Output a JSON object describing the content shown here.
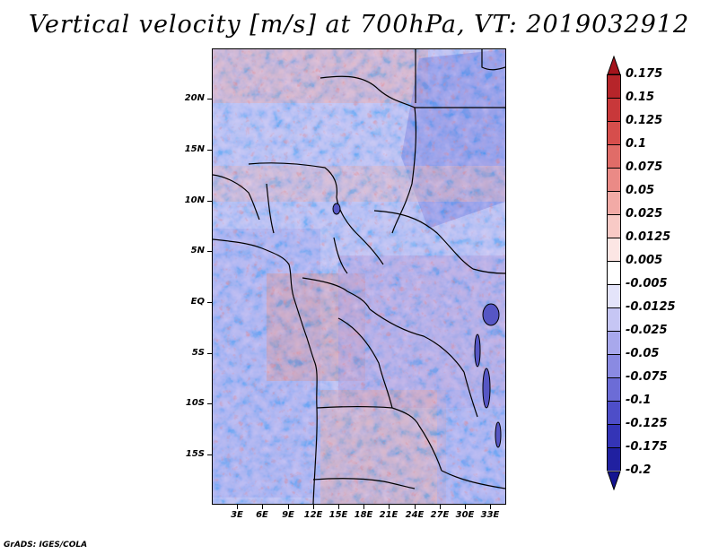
{
  "title": "Vertical velocity [m/s] at 700hPa, VT: 2019032912",
  "footer": "GrADS: IGES/COLA",
  "map": {
    "lat_labels": [
      "20N",
      "15N",
      "10N",
      "5N",
      "EQ",
      "5S",
      "10S",
      "15S"
    ],
    "lon_labels": [
      "3E",
      "6E",
      "9E",
      "12E",
      "15E",
      "18E",
      "21E",
      "24E",
      "27E",
      "30E",
      "33E"
    ]
  },
  "colorbar": {
    "labels": [
      "0.175",
      "0.15",
      "0.125",
      "0.1",
      "0.075",
      "0.05",
      "0.025",
      "0.0125",
      "0.005",
      "-0.005",
      "-0.0125",
      "-0.025",
      "-0.05",
      "-0.075",
      "-0.1",
      "-0.125",
      "-0.175",
      "-0.2"
    ],
    "colors": [
      "#a4141c",
      "#b6252a",
      "#c8383a",
      "#d64e4c",
      "#e06c68",
      "#ea8a86",
      "#f2aaa6",
      "#f8cac6",
      "#fce6e4",
      "#ffffff",
      "#e4e4fa",
      "#c6c6f4",
      "#a8a8ec",
      "#8a8ae2",
      "#6c6cd6",
      "#4e4ec8",
      "#3434b6",
      "#2020a0",
      "#141490"
    ]
  }
}
